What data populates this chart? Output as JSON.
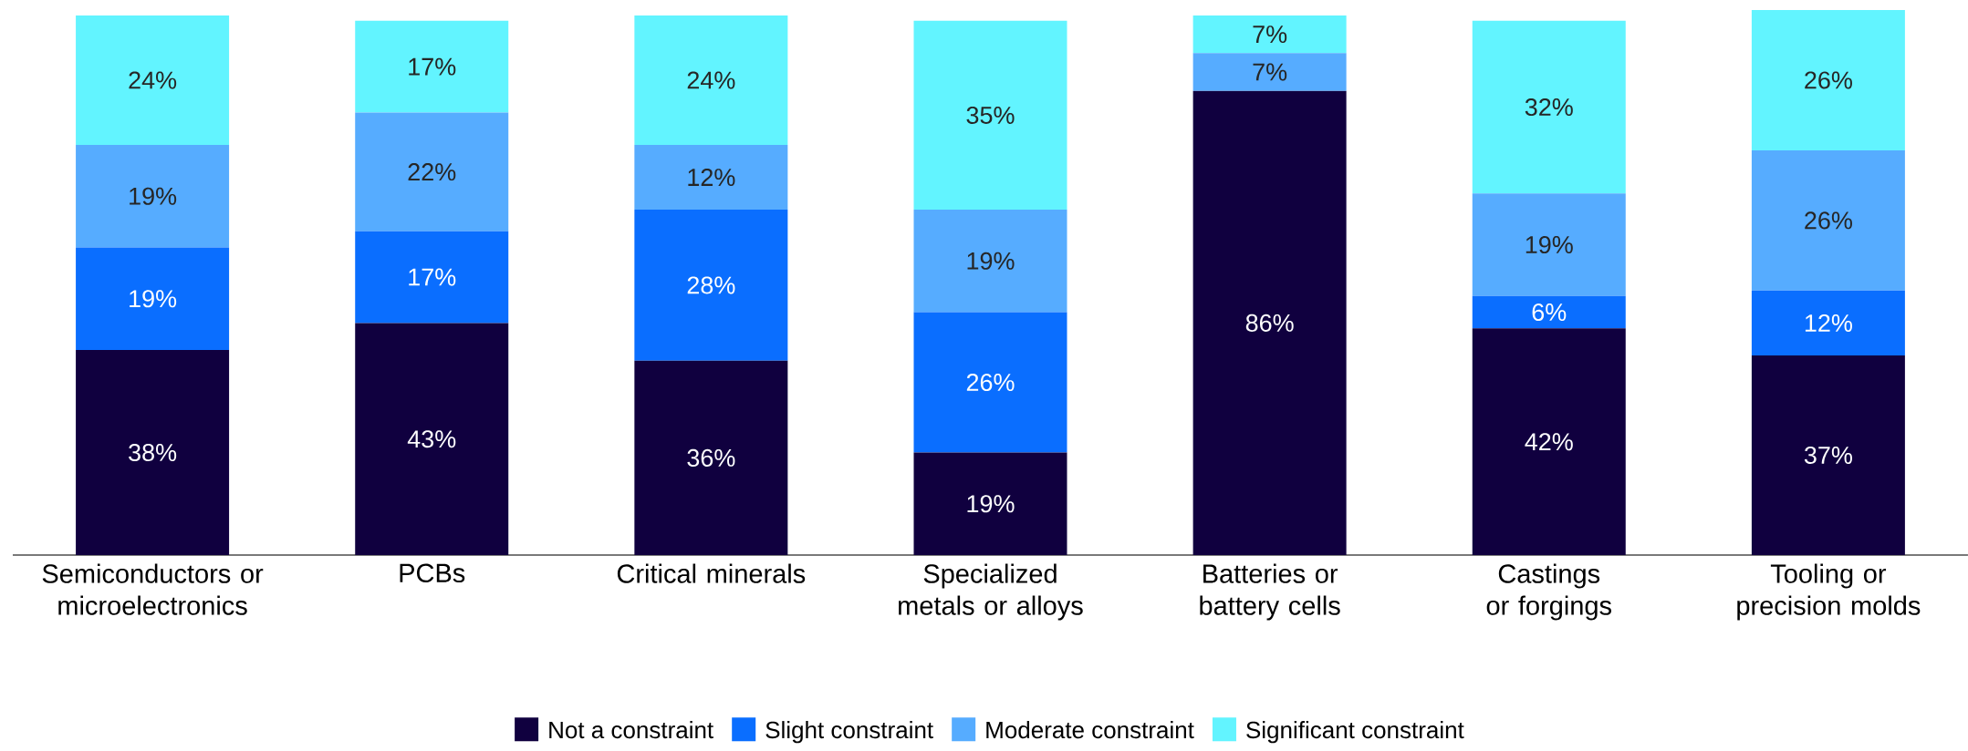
{
  "chart_data": {
    "type": "bar",
    "stacked": true,
    "tick_labels": "x",
    "legend": "bottom",
    "categories": [
      "Semiconductors or microelectronics",
      "PCBs",
      "Critical minerals",
      "Specialized metals or alloys",
      "Batteries or battery cells",
      "Castings or forgings",
      "Tooling or precision molds"
    ],
    "series": [
      {
        "name": "Not a constraint",
        "color": "#10003f",
        "values": [
          38,
          43,
          36,
          19,
          86,
          42,
          37
        ],
        "value_labels": [
          "38%",
          "43%",
          "36%",
          "19%",
          "86%",
          "42%",
          "37%"
        ]
      },
      {
        "name": "Slight constraint",
        "color": "#0a6eff",
        "values": [
          19,
          17,
          28,
          26,
          null,
          6,
          12
        ],
        "value_labels": [
          "19%",
          "17%",
          "28%",
          "26%",
          null,
          "6%",
          "12%"
        ]
      },
      {
        "name": "Moderate constraint",
        "color": "#56acff",
        "values": [
          19,
          22,
          12,
          19,
          7,
          19,
          26
        ],
        "value_labels": [
          "19%",
          "22%",
          "12%",
          "19%",
          "7%",
          "19%",
          "26%"
        ]
      },
      {
        "name": "Significant constraint",
        "color": "#62f4ff",
        "values": [
          24,
          17,
          24,
          35,
          7,
          32,
          26
        ],
        "value_labels": [
          "24%",
          "17%",
          "24%",
          "35%",
          "7%",
          "32%",
          "26%"
        ]
      }
    ]
  }
}
